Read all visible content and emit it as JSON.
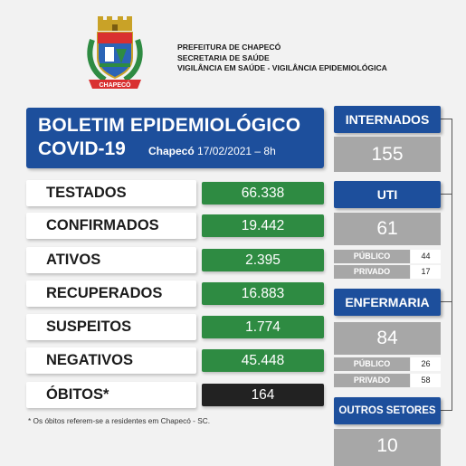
{
  "header": {
    "crest_ribbon": "CHAPECÓ",
    "org_lines": [
      "PREFEITURA DE CHAPECÓ",
      "SECRETARIA DE SAÚDE",
      "VIGILÂNCIA EM SAÚDE - VIGILÂNCIA EPIDEMIOLÓGICA"
    ]
  },
  "title": {
    "line1": "BOLETIM EPIDEMIOLÓGICO",
    "line2": "COVID-19",
    "city": "Chapecó",
    "date": "17/02/2021 – 8h"
  },
  "stats": [
    {
      "label": "TESTADOS",
      "value": "66.338"
    },
    {
      "label": "CONFIRMADOS",
      "value": "19.442"
    },
    {
      "label": "ATIVOS",
      "value": "2.395"
    },
    {
      "label": "RECUPERADOS",
      "value": "16.883"
    },
    {
      "label": "SUSPEITOS",
      "value": "1.774"
    },
    {
      "label": "NEGATIVOS",
      "value": "45.448"
    },
    {
      "label": "ÓBITOS*",
      "value": "164"
    }
  ],
  "footnote": "* Os óbitos referem-se a residentes em Chapecó - SC.",
  "side": {
    "internados": {
      "label": "INTERNADOS",
      "value": "155"
    },
    "uti": {
      "label": "UTI",
      "value": "61",
      "publico_label": "PÚBLICO",
      "publico": "44",
      "privado_label": "PRIVADO",
      "privado": "17"
    },
    "enfermaria": {
      "label": "ENFERMARIA",
      "value": "84",
      "publico_label": "PÚBLICO",
      "publico": "26",
      "privado_label": "PRIVADO",
      "privado": "58"
    },
    "outros": {
      "label": "OUTROS SETORES",
      "value": "10"
    }
  },
  "colors": {
    "blue": "#1d4f9c",
    "green": "#2e8b42",
    "gray": "#a7a7a7",
    "dark": "#222222"
  }
}
